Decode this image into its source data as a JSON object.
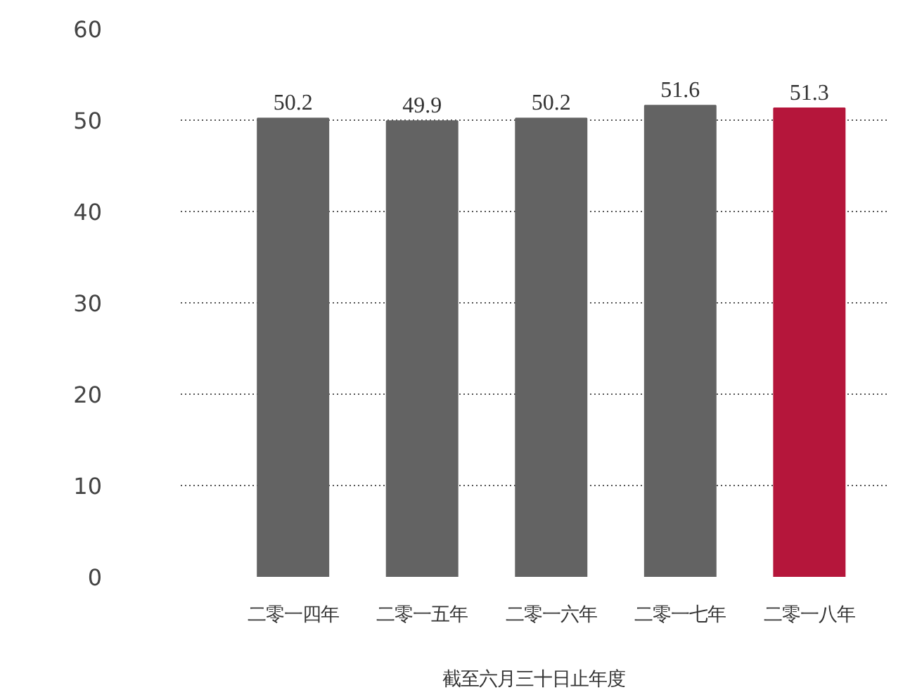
{
  "chart_data": {
    "type": "bar",
    "xlabel": "截至六月三十日止年度",
    "categories": [
      "二零一四年",
      "二零一五年",
      "二零一六年",
      "二零一七年",
      "二零一八年"
    ],
    "values": [
      50.2,
      49.9,
      50.2,
      51.6,
      51.3
    ],
    "colors": [
      "#636363",
      "#636363",
      "#636363",
      "#636363",
      "#b5163b"
    ],
    "ylim": [
      0,
      60
    ],
    "yticks": [
      0,
      10,
      20,
      30,
      40,
      50,
      60
    ],
    "grid": "y",
    "data_labels": true
  }
}
